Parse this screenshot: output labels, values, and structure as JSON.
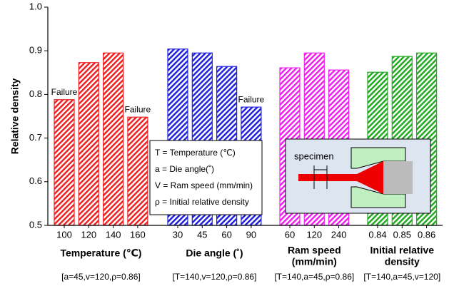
{
  "chart_data": {
    "type": "bar",
    "ylabel": "Relative density",
    "ylim": [
      0.5,
      1.0
    ],
    "yticks": [
      0.5,
      0.6,
      0.7,
      0.8,
      0.9,
      {
        "value": 1.0,
        "label": "1.0"
      }
    ],
    "groups": [
      {
        "label_lines": [
          "Temperature (℃)"
        ],
        "condition": "[a=45,v=120,ρ=0.86]",
        "color": "#ee2222",
        "categories": [
          "100",
          "120",
          "140",
          "160"
        ],
        "values": [
          0.788,
          0.873,
          0.895,
          0.748
        ],
        "notes": [
          "Failure",
          null,
          null,
          "Failure"
        ]
      },
      {
        "label_lines": [
          "Die angle (˚)"
        ],
        "condition": "[T=140,v=120,ρ=0.86]",
        "color": "#2222dd",
        "categories": [
          "30",
          "45",
          "60",
          "90"
        ],
        "values": [
          0.904,
          0.895,
          0.864,
          0.771
        ],
        "notes": [
          null,
          null,
          null,
          "Failure"
        ]
      },
      {
        "label_lines": [
          "Ram speed",
          "(mm/min)"
        ],
        "condition": "[T=140,a=45,ρ=0.86]",
        "color": "#ee22ee",
        "categories": [
          "60",
          "120",
          "240"
        ],
        "values": [
          0.861,
          0.895,
          0.856
        ],
        "notes": [
          null,
          null,
          null
        ]
      },
      {
        "label_lines": [
          "Initial relative",
          "density"
        ],
        "condition": "[T=140,a=45,v=120]",
        "color": "#22aa22",
        "categories": [
          "0.84",
          "0.85",
          "0.86"
        ],
        "values": [
          0.851,
          0.887,
          0.895
        ],
        "notes": [
          null,
          null,
          null
        ]
      }
    ],
    "legend_lines": [
      "T = Temperature (℃)",
      "a = Die angle(˚)",
      "V = Ram speed (mm/min)",
      "ρ = Initial relative density"
    ],
    "inset_label": "specimen"
  }
}
